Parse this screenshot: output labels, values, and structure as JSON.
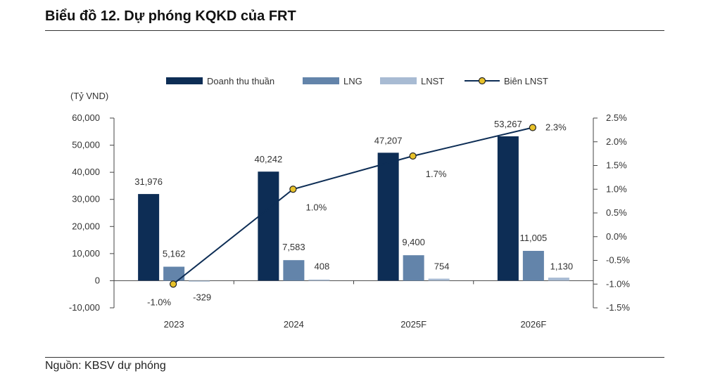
{
  "page": {
    "title": "Biểu đồ 12. Dự phóng KQKD của FRT",
    "source": "Nguồn: KBSV dự phóng"
  },
  "chart_data": {
    "type": "bar",
    "categories": [
      "2023",
      "2024",
      "2025F",
      "2026F"
    ],
    "y_unit": "(Tỷ VND)",
    "ylim": [
      -10000,
      60000
    ],
    "y_ticks": [
      60000,
      50000,
      40000,
      30000,
      20000,
      10000,
      0,
      -10000
    ],
    "y_tick_labels": [
      "60,000",
      "50,000",
      "40,000",
      "30,000",
      "20,000",
      "10,000",
      "0",
      "-10,000"
    ],
    "y2lim": [
      -1.5,
      2.5
    ],
    "y2_ticks": [
      2.5,
      2.0,
      1.5,
      1.0,
      0.5,
      0.0,
      -0.5,
      -1.0,
      -1.5
    ],
    "y2_tick_labels": [
      "2.5%",
      "2.0%",
      "1.5%",
      "1.0%",
      "0.5%",
      "0.0%",
      "-0.5%",
      "-1.0%",
      "-1.5%"
    ],
    "series": [
      {
        "name": "Doanh thu thuần",
        "type": "bar",
        "axis": "left",
        "color": "#0d2d55",
        "values": [
          31976,
          40242,
          47207,
          53267
        ],
        "labels": [
          "31,976",
          "40,242",
          "47,207",
          "53,267"
        ]
      },
      {
        "name": "LNG",
        "type": "bar",
        "axis": "left",
        "color": "#6384aa",
        "values": [
          5162,
          7583,
          9400,
          11005
        ],
        "labels": [
          "5,162",
          "7,583",
          "9,400",
          "11,005"
        ]
      },
      {
        "name": "LNST",
        "type": "bar",
        "axis": "left",
        "color": "#a8bbd3",
        "values": [
          -329,
          408,
          754,
          1130
        ],
        "labels": [
          "-329",
          "408",
          "754",
          "1,130"
        ]
      },
      {
        "name": "Biên LNST",
        "type": "line",
        "axis": "right",
        "color": "#0d2d55",
        "marker_color": "#e8c22a",
        "values": [
          -1.0,
          1.0,
          1.7,
          2.3
        ],
        "labels": [
          "-1.0%",
          "1.0%",
          "1.7%",
          "2.3%"
        ]
      }
    ]
  }
}
